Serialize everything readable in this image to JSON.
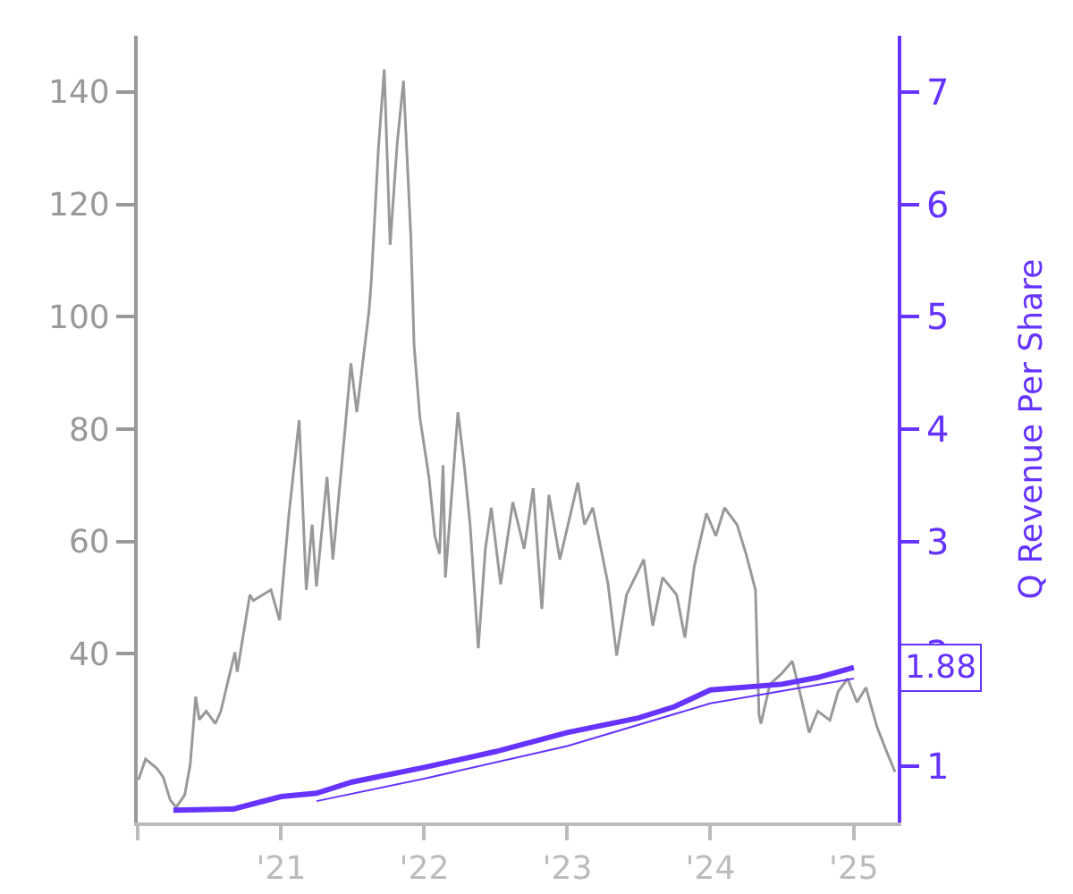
{
  "chart_data": {
    "type": "line",
    "y2label": "Q Revenue Per Share",
    "xlim": [
      "2020-01-01",
      "2025-04-23"
    ],
    "xticks": [
      {
        "value": "2020-01-01",
        "label": null
      },
      {
        "value": "2021-01-01",
        "label": "'21"
      },
      {
        "value": "2022-01-01",
        "label": "'22"
      },
      {
        "value": "2023-01-01",
        "label": "'23"
      },
      {
        "value": "2024-01-01",
        "label": "'24"
      },
      {
        "value": "2025-01-01",
        "label": "'25"
      }
    ],
    "ylim": [
      10,
      150
    ],
    "yticks": [
      40,
      60,
      80,
      100,
      120,
      140
    ],
    "y2lim": [
      0.5,
      7.5
    ],
    "y2ticks": [
      1,
      2,
      3,
      4,
      5,
      6,
      7
    ],
    "grid": false,
    "marker": "none",
    "line_style": "solid",
    "annotations": [
      "1.88"
    ],
    "series": [
      {
        "color": "#999999",
        "x": [
          "2020-01-03",
          "2020-01-21",
          "2020-02-18",
          "2020-03-06",
          "2020-03-24",
          "2020-04-08",
          "2020-04-30",
          "2020-05-14",
          "2020-05-28",
          "2020-06-06",
          "2020-06-24",
          "2020-07-17",
          "2020-07-31",
          "2020-09-05",
          "2020-09-11",
          "2020-10-13",
          "2020-10-22",
          "2020-12-06",
          "2020-12-28",
          "2021-01-21",
          "2021-02-16",
          "2021-03-06",
          "2021-03-21",
          "2021-04-01",
          "2021-04-28",
          "2021-05-13",
          "2021-06-13",
          "2021-06-28",
          "2021-07-13",
          "2021-08-13",
          "2021-08-19",
          "2021-09-06",
          "2021-09-21",
          "2021-10-06",
          "2021-10-24",
          "2021-11-09",
          "2021-11-28",
          "2021-12-06",
          "2021-12-21",
          "2022-01-13",
          "2022-01-28",
          "2022-02-09",
          "2022-02-18",
          "2022-02-24",
          "2022-03-28",
          "2022-04-13",
          "2022-04-28",
          "2022-05-19",
          "2022-06-06",
          "2022-06-21",
          "2022-07-15",
          "2022-08-15",
          "2022-09-13",
          "2022-10-06",
          "2022-10-28",
          "2022-11-15",
          "2022-12-13",
          "2023-01-28",
          "2023-02-14",
          "2023-03-07",
          "2023-04-15",
          "2023-05-07",
          "2023-06-01",
          "2023-07-15",
          "2023-08-07",
          "2023-09-01",
          "2023-10-07",
          "2023-10-28",
          "2023-11-21",
          "2023-12-22",
          "2024-01-15",
          "2024-02-06",
          "2024-03-09",
          "2024-04-01",
          "2024-04-25",
          "2024-05-04",
          "2024-05-09",
          "2024-06-01",
          "2024-07-01",
          "2024-07-28",
          "2024-08-16",
          "2024-09-09",
          "2024-10-01",
          "2024-11-01",
          "2024-11-22",
          "2024-12-16",
          "2025-01-09",
          "2025-02-01",
          "2025-03-01",
          "2025-03-24",
          "2025-04-16"
        ],
        "values": [
          17.6,
          21.3,
          19.7,
          18.1,
          14,
          12.7,
          14.9,
          20.3,
          32.4,
          28.3,
          29.8,
          27.6,
          29.8,
          40.3,
          36.8,
          50.5,
          49.5,
          51.4,
          46,
          65,
          81.6,
          51.4,
          63,
          52,
          71.5,
          56.8,
          80,
          91.7,
          83,
          101,
          106.4,
          129.8,
          144,
          112.8,
          130.8,
          142,
          114,
          95,
          82,
          71.5,
          61,
          57.8,
          73.6,
          53.6,
          83,
          73.6,
          63,
          41,
          58.7,
          66,
          52.4,
          67,
          58.7,
          69.5,
          48,
          68.3,
          56.8,
          70.5,
          63,
          66,
          52.4,
          39.7,
          50.5,
          56.8,
          45,
          53.6,
          50.5,
          42.9,
          55.6,
          65,
          61,
          66,
          63,
          57.8,
          51.4,
          29.2,
          27.6,
          34.6,
          36.5,
          38.7,
          33.3,
          26,
          29.8,
          28.2,
          33.3,
          35.6,
          31.4,
          34,
          27,
          22.9,
          19
        ]
      },
      {
        "color": "#6633ff",
        "axis": "y2",
        "x": [
          "2020-04-01",
          "2020-09-01",
          "2021-01-01",
          "2021-04-01",
          "2021-07-01",
          "2022-01-01",
          "2022-07-01",
          "2023-01-01",
          "2023-07-01",
          "2023-10-01",
          "2024-01-01",
          "2024-07-01",
          "2024-10-01",
          "2025-01-01"
        ],
        "values": [
          0.61,
          0.62,
          0.73,
          0.76,
          0.86,
          0.99,
          1.13,
          1.3,
          1.43,
          1.53,
          1.68,
          1.73,
          1.79,
          1.88
        ]
      },
      {
        "color": "#6633ff",
        "axis": "y2",
        "x": [
          "2021-04-01",
          "2022-01-01",
          "2023-01-01",
          "2024-01-01",
          "2025-01-01"
        ],
        "values": [
          0.69,
          0.89,
          1.18,
          1.56,
          1.78
        ]
      }
    ]
  }
}
